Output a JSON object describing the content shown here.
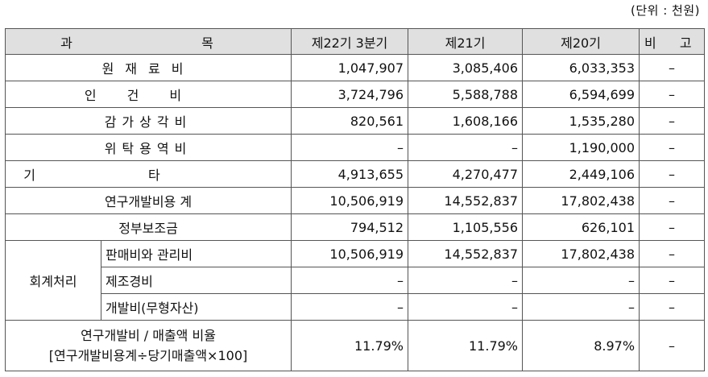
{
  "unit_note": "(단위 : 천원)",
  "headers": {
    "item": "과    목",
    "p22": "제22기 3분기",
    "p21": "제21기",
    "p20": "제20기",
    "note": "비 고"
  },
  "rows": [
    {
      "label": "원재료비",
      "p22": "1,047,907",
      "p21": "3,085,406",
      "p20": "6,033,353",
      "note": "–"
    },
    {
      "label": "인건비",
      "p22": "3,724,796",
      "p21": "5,588,788",
      "p20": "6,594,699",
      "note": "–"
    },
    {
      "label": "감가상각비",
      "p22": "820,561",
      "p21": "1,608,166",
      "p20": "1,535,280",
      "note": "–"
    },
    {
      "label": "위탁용역비",
      "p22": "–",
      "p21": "–",
      "p20": "1,190,000",
      "note": "–"
    },
    {
      "label": "기타",
      "p22": "4,913,655",
      "p21": "4,270,477",
      "p20": "2,449,106",
      "note": "–"
    },
    {
      "label": "연구개발비용 계",
      "p22": "10,506,919",
      "p21": "14,552,837",
      "p20": "17,802,438",
      "note": "–"
    },
    {
      "label": "정부보조금",
      "p22": "794,512",
      "p21": "1,105,556",
      "p20": "626,101",
      "note": "–"
    }
  ],
  "accounting": {
    "group_label": "회계처리",
    "items": [
      {
        "label": "판매비와 관리비",
        "p22": "10,506,919",
        "p21": "14,552,837",
        "p20": "17,802,438",
        "note": "–"
      },
      {
        "label": "제조경비",
        "p22": "–",
        "p21": "–",
        "p20": "–",
        "note": "–"
      },
      {
        "label": "개발비(무형자산)",
        "p22": "–",
        "p21": "–",
        "p20": "–",
        "note": "–"
      }
    ]
  },
  "ratio": {
    "label_line1": "연구개발비 / 매출액 비율",
    "label_line2": "[연구개발비용계÷당기매출액×100]",
    "p22": "11.79%",
    "p21": "11.79%",
    "p20": "8.97%",
    "note": "–"
  }
}
